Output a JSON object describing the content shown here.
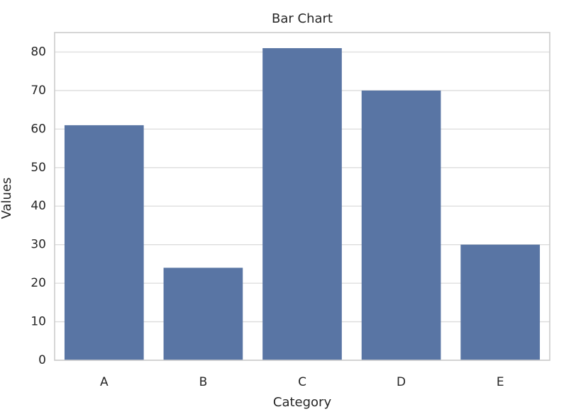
{
  "chart_data": {
    "type": "bar",
    "title": "Bar Chart",
    "x_label": "Category",
    "y_label": "Values",
    "categories": [
      "A",
      "B",
      "C",
      "D",
      "E"
    ],
    "values": [
      61,
      24,
      81,
      70,
      30
    ],
    "color": "#5975a4",
    "ylim": [
      0,
      85.05
    ],
    "yticks": [
      0,
      10,
      20,
      30,
      40,
      50,
      60,
      70,
      80
    ],
    "grid": true
  }
}
